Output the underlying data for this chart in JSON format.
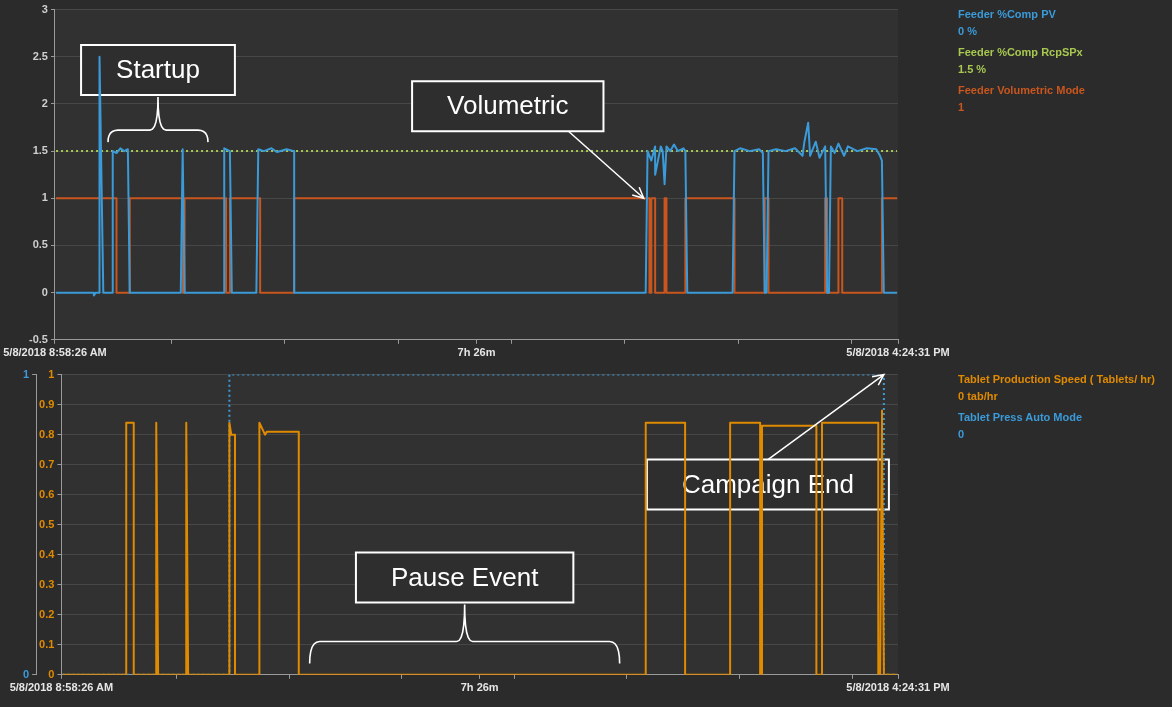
{
  "chart_data": [
    {
      "type": "line",
      "xlim": [
        "2018-05-08T08:58:26",
        "2018-05-08T16:24:31"
      ],
      "xticks": [
        {
          "value": "2018-05-08T08:58:26",
          "label": "5/8/2018 8:58:26 AM"
        },
        {
          "value": "2018-05-08T10:00",
          "label": null
        },
        {
          "value": "2018-05-08T11:00",
          "label": null
        },
        {
          "value": "2018-05-08T12:00",
          "label": null
        },
        {
          "value": "2018-05-08T12:41:28",
          "label": "7h 26m"
        },
        {
          "value": "2018-05-08T13:00",
          "label": null
        },
        {
          "value": "2018-05-08T14:00",
          "label": null
        },
        {
          "value": "2018-05-08T15:00",
          "label": null
        },
        {
          "value": "2018-05-08T16:00",
          "label": null
        },
        {
          "value": "2018-05-08T16:24:31",
          "label": "5/8/2018 4:24:31 PM"
        }
      ],
      "ylim": [
        -0.5,
        3
      ],
      "yticks": [
        -0.5,
        0,
        0.5,
        1,
        1.5,
        2,
        2.5,
        3
      ],
      "grid": "y",
      "legend": "right",
      "marker": "none",
      "series": [
        {
          "name": "Feeder %Comp PV",
          "color": "#3b9ad8",
          "line_style": "solid",
          "x": [
            "2018-05-08T08:59",
            "2018-05-08T09:19",
            "2018-05-08T09:19",
            "2018-05-08T09:20",
            "2018-05-08T09:22",
            "2018-05-08T09:22",
            "2018-05-08T09:24",
            "2018-05-08T09:29",
            "2018-05-08T09:29",
            "2018-05-08T09:31",
            "2018-05-08T09:33",
            "2018-05-08T09:35",
            "2018-05-08T09:37",
            "2018-05-08T09:38",
            "2018-05-08T10:05",
            "2018-05-08T10:06",
            "2018-05-08T10:07",
            "2018-05-08T10:28",
            "2018-05-08T10:28",
            "2018-05-08T10:31",
            "2018-05-08T10:32",
            "2018-05-08T10:45",
            "2018-05-08T10:46",
            "2018-05-08T10:49",
            "2018-05-08T10:53",
            "2018-05-08T10:56",
            "2018-05-08T11:01",
            "2018-05-08T11:05",
            "2018-05-08T11:05",
            "2018-05-08T14:11",
            "2018-05-08T14:12",
            "2018-05-08T14:14",
            "2018-05-08T14:16",
            "2018-05-08T14:16",
            "2018-05-08T14:19",
            "2018-05-08T14:20",
            "2018-05-08T14:21",
            "2018-05-08T14:22",
            "2018-05-08T14:24",
            "2018-05-08T14:26",
            "2018-05-08T14:28",
            "2018-05-08T14:31",
            "2018-05-08T14:32",
            "2018-05-08T14:33",
            "2018-05-08T14:57",
            "2018-05-08T14:58",
            "2018-05-08T15:01",
            "2018-05-08T15:06",
            "2018-05-08T15:11",
            "2018-05-08T15:13",
            "2018-05-08T15:14",
            "2018-05-08T15:15",
            "2018-05-08T15:16",
            "2018-05-08T15:20",
            "2018-05-08T15:25",
            "2018-05-08T15:30",
            "2018-05-08T15:34",
            "2018-05-08T15:35",
            "2018-05-08T15:37",
            "2018-05-08T15:38",
            "2018-05-08T15:41",
            "2018-05-08T15:43",
            "2018-05-08T15:46",
            "2018-05-08T15:47",
            "2018-05-08T15:48",
            "2018-05-08T15:49",
            "2018-05-08T15:51",
            "2018-05-08T15:53",
            "2018-05-08T15:56",
            "2018-05-08T15:58",
            "2018-05-08T16:03",
            "2018-05-08T16:08",
            "2018-05-08T16:13",
            "2018-05-08T16:15",
            "2018-05-08T16:16",
            "2018-05-08T16:17",
            "2018-05-08T16:24"
          ],
          "values": [
            0,
            0,
            -0.03,
            0,
            0,
            2.5,
            0,
            0,
            1.5,
            1.48,
            1.53,
            1.5,
            1.52,
            0,
            0,
            1.52,
            0,
            0,
            1.53,
            1.5,
            0,
            0,
            1.52,
            1.5,
            1.53,
            1.49,
            1.52,
            1.5,
            0,
            0,
            1.5,
            1.4,
            1.55,
            1.25,
            1.55,
            1.5,
            1.15,
            1.55,
            1.5,
            1.57,
            1.5,
            1.53,
            1.5,
            0,
            0,
            1.5,
            1.53,
            1.5,
            1.52,
            1.48,
            0,
            0,
            1.5,
            1.52,
            1.5,
            1.53,
            1.45,
            1.6,
            1.8,
            1.45,
            1.6,
            1.43,
            1.55,
            0,
            0,
            1.55,
            1.48,
            1.58,
            1.45,
            1.55,
            1.5,
            1.53,
            1.52,
            1.45,
            1.4,
            0,
            0
          ]
        },
        {
          "name": "Feeder %Comp RcpSPx",
          "color": "#a8c850",
          "line_style": "dotted",
          "x": [
            "2018-05-08T08:59",
            "2018-05-08T16:24"
          ],
          "values": [
            1.5,
            1.5
          ]
        },
        {
          "name": "Feeder Volumetric Mode",
          "color": "#c8561e",
          "line_style": "solid",
          "x": [
            "2018-05-08T08:59",
            "2018-05-08T09:31",
            "2018-05-08T09:31",
            "2018-05-08T09:38",
            "2018-05-08T09:38",
            "2018-05-08T10:06",
            "2018-05-08T10:06",
            "2018-05-08T10:07",
            "2018-05-08T10:07",
            "2018-05-08T10:29",
            "2018-05-08T10:29",
            "2018-05-08T10:31",
            "2018-05-08T10:31",
            "2018-05-08T10:47",
            "2018-05-08T10:47",
            "2018-05-08T11:05",
            "2018-05-08T11:05",
            "2018-05-08T14:13",
            "2018-05-08T14:13",
            "2018-05-08T14:14",
            "2018-05-08T14:14",
            "2018-05-08T14:16",
            "2018-05-08T14:16",
            "2018-05-08T14:21",
            "2018-05-08T14:21",
            "2018-05-08T14:22",
            "2018-05-08T14:22",
            "2018-05-08T14:32",
            "2018-05-08T14:32",
            "2018-05-08T14:58",
            "2018-05-08T14:58",
            "2018-05-08T15:14",
            "2018-05-08T15:14",
            "2018-05-08T15:16",
            "2018-05-08T15:16",
            "2018-05-08T15:46",
            "2018-05-08T15:46",
            "2018-05-08T15:47",
            "2018-05-08T15:47",
            "2018-05-08T15:53",
            "2018-05-08T15:53",
            "2018-05-08T15:55",
            "2018-05-08T15:55",
            "2018-05-08T16:16",
            "2018-05-08T16:16",
            "2018-05-08T16:24"
          ],
          "values": [
            1,
            1,
            0,
            0,
            1,
            1,
            0,
            0,
            1,
            1,
            0,
            0,
            1,
            1,
            0,
            0,
            1,
            1,
            0,
            0,
            1,
            1,
            0,
            0,
            1,
            1,
            0,
            0,
            1,
            1,
            0,
            0,
            1,
            1,
            0,
            0,
            1,
            1,
            0,
            0,
            1,
            1,
            0,
            0,
            1,
            1
          ]
        }
      ],
      "annotations": [
        "0 %",
        "1.5 %",
        "1",
        {
          "text": "Startup",
          "x": "2018-05-08T09:54",
          "y": 1.5
        },
        {
          "text": "Volumetric",
          "x": "2018-05-08T14:10",
          "y": 1
        }
      ]
    },
    {
      "type": "line",
      "xlim": [
        "2018-05-08T08:58:26",
        "2018-05-08T16:24:31"
      ],
      "xticks": [
        {
          "value": "2018-05-08T08:58:26",
          "label": "5/8/2018 8:58:26 AM"
        },
        {
          "value": "2018-05-08T10:00",
          "label": null
        },
        {
          "value": "2018-05-08T11:00",
          "label": null
        },
        {
          "value": "2018-05-08T12:00",
          "label": null
        },
        {
          "value": "2018-05-08T12:41:28",
          "label": "7h 26m"
        },
        {
          "value": "2018-05-08T13:00",
          "label": null
        },
        {
          "value": "2018-05-08T14:00",
          "label": null
        },
        {
          "value": "2018-05-08T15:00",
          "label": null
        },
        {
          "value": "2018-05-08T16:00",
          "label": null
        },
        {
          "value": "2018-05-08T16:24:31",
          "label": "5/8/2018 4:24:31 PM"
        }
      ],
      "ylim": [
        0,
        1
      ],
      "yticks": [
        0,
        0.1,
        0.2,
        0.3,
        0.4,
        0.5,
        0.6,
        0.7,
        0.8,
        0.9,
        1
      ],
      "y2lim": [
        0,
        1
      ],
      "y2ticks": [
        0,
        1
      ],
      "grid": "y",
      "legend": "right",
      "marker": "none",
      "series": [
        {
          "name": "Tablet Production Speed ( Tablets/ hr)",
          "color": "#e08a00",
          "line_style": "solid",
          "x": [
            "2018-05-08T08:59",
            "2018-05-08T09:33",
            "2018-05-08T09:33",
            "2018-05-08T09:37",
            "2018-05-08T09:37",
            "2018-05-08T09:49",
            "2018-05-08T09:49",
            "2018-05-08T09:50",
            "2018-05-08T10:05",
            "2018-05-08T10:05",
            "2018-05-08T10:06",
            "2018-05-08T10:28",
            "2018-05-08T10:28",
            "2018-05-08T10:29",
            "2018-05-08T10:31",
            "2018-05-08T10:31",
            "2018-05-08T10:44",
            "2018-05-08T10:44",
            "2018-05-08T10:47",
            "2018-05-08T10:48",
            "2018-05-08T11:05",
            "2018-05-08T11:05",
            "2018-05-08T14:10",
            "2018-05-08T14:10",
            "2018-05-08T14:31",
            "2018-05-08T14:31",
            "2018-05-08T14:55",
            "2018-05-08T14:55",
            "2018-05-08T15:11",
            "2018-05-08T15:11",
            "2018-05-08T15:12",
            "2018-05-08T15:12",
            "2018-05-08T15:41",
            "2018-05-08T15:41",
            "2018-05-08T15:44",
            "2018-05-08T15:44",
            "2018-05-08T16:14",
            "2018-05-08T16:14",
            "2018-05-08T16:15",
            "2018-05-08T16:16",
            "2018-05-08T16:16",
            "2018-05-08T16:17",
            "2018-05-08T16:24"
          ],
          "values": [
            0,
            0,
            0.84,
            0.84,
            0,
            0,
            0.84,
            0,
            0,
            0.84,
            0,
            0,
            0.84,
            0.8,
            0.8,
            0,
            0,
            0.84,
            0.8,
            0.81,
            0.81,
            0,
            0,
            0.84,
            0.84,
            0,
            0,
            0.84,
            0.84,
            0,
            0,
            0.83,
            0.83,
            0,
            0,
            0.84,
            0.84,
            0,
            0,
            0.88,
            0.8,
            0,
            0
          ]
        },
        {
          "name": "Tablet Press Auto Mode",
          "color": "#3b9ad8",
          "line_style": "dotted",
          "axis": "y2",
          "x": [
            "2018-05-08T08:59",
            "2018-05-08T10:28",
            "2018-05-08T10:28",
            "2018-05-08T16:17",
            "2018-05-08T16:17",
            "2018-05-08T16:24"
          ],
          "values": [
            0,
            0,
            1,
            1,
            0,
            0
          ]
        }
      ],
      "annotations": [
        "0 tab/hr",
        "0",
        "Pause Event",
        {
          "text": "Campaign End",
          "x": "2018-05-08T16:17",
          "y": 1
        }
      ]
    }
  ]
}
